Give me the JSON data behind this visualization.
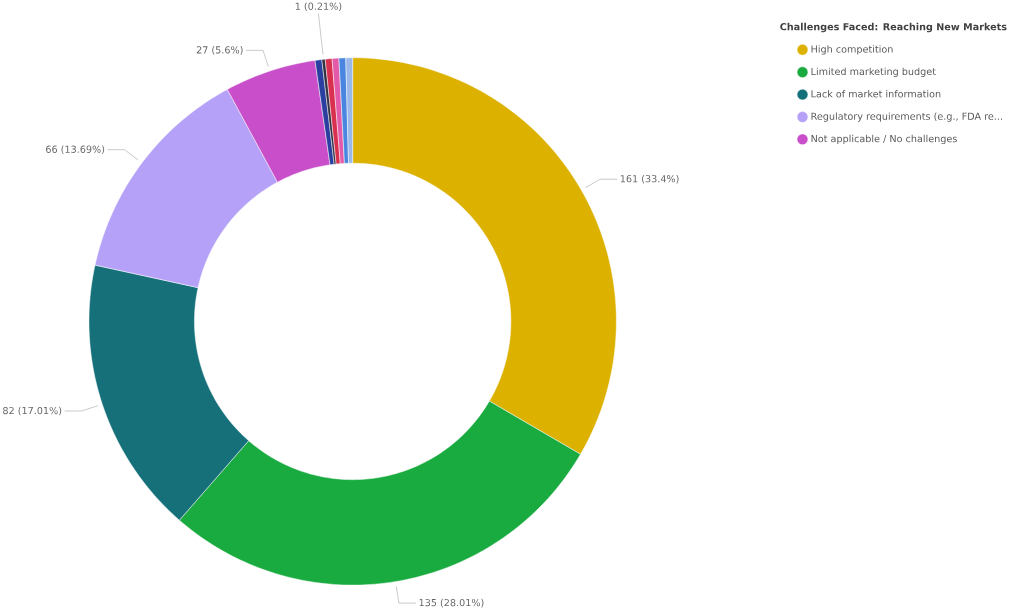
{
  "chart_data": {
    "type": "donut",
    "legend_title": "Challenges Faced: Reaching New Markets",
    "legend": "top right",
    "categories": [
      "High competition",
      "Limited marketing budget",
      "Lack of market information",
      "Regulatory requirements (e.g., FDA re...",
      "Not applicable / No challenges",
      null,
      null,
      null,
      null,
      null,
      null
    ],
    "values": [
      161,
      135,
      82,
      66,
      27,
      2,
      1,
      2,
      2,
      2,
      2
    ],
    "value_labels": [
      "161 (33.4%)",
      "135 (28.01%)",
      "82 (17.01%)",
      "66 (13.69%)",
      "27 (5.6%)",
      null,
      "1 (0.21%)",
      null,
      null,
      null,
      null
    ],
    "colors": [
      "#dcb100",
      "#1aab40",
      "#15707a",
      "#b5a1f8",
      "#c84fc9",
      "#2a3f9f",
      "#333344",
      "#d9304f",
      "#e25aa8",
      "#4a86e0",
      "#9ab8e8"
    ]
  }
}
